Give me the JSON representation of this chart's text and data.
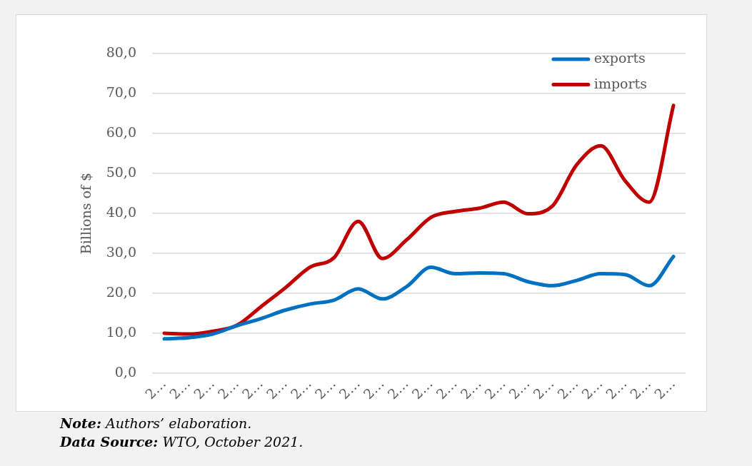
{
  "chart_data": {
    "type": "line",
    "ylabel": "Billions of $",
    "categories": [
      "2…",
      "2…",
      "2…",
      "2…",
      "2…",
      "2…",
      "2…",
      "2…",
      "2…",
      "2…",
      "2…",
      "2…",
      "2…",
      "2…",
      "2…",
      "2…",
      "2…",
      "2…",
      "2…",
      "2…",
      "2…",
      "2…"
    ],
    "series": [
      {
        "name": "exports",
        "color": "#0070c0",
        "values": [
          8.6,
          8.9,
          9.8,
          11.9,
          13.7,
          15.8,
          17.3,
          18.3,
          21.1,
          18.6,
          21.7,
          26.5,
          24.9,
          25.1,
          24.9,
          22.9,
          21.9,
          23.2,
          24.9,
          24.7,
          21.9,
          29.2
        ]
      },
      {
        "name": "imports",
        "color": "#c00000",
        "values": [
          10.0,
          9.8,
          10.5,
          12.0,
          16.7,
          21.4,
          26.5,
          28.9,
          38.0,
          28.7,
          33.4,
          39.0,
          40.5,
          41.3,
          42.8,
          39.9,
          41.8,
          52.1,
          56.9,
          48.2,
          42.8,
          67.0
        ]
      }
    ],
    "ylim": [
      0,
      80
    ],
    "yticks": [
      {
        "value": 0,
        "label": "0,0"
      },
      {
        "value": 10,
        "label": "10,0"
      },
      {
        "value": 20,
        "label": "20,0"
      },
      {
        "value": 30,
        "label": "30,0"
      },
      {
        "value": 40,
        "label": "40,0"
      },
      {
        "value": 50,
        "label": "50,0"
      },
      {
        "value": 60,
        "label": "60,0"
      },
      {
        "value": 70,
        "label": "70,0"
      },
      {
        "value": 80,
        "label": "80,0"
      }
    ],
    "grid": "y",
    "legend": "top right",
    "marker": "none",
    "annotations": [
      "Note: Authors’ elaboration.",
      "Data Source: WTO, October 2021."
    ]
  }
}
